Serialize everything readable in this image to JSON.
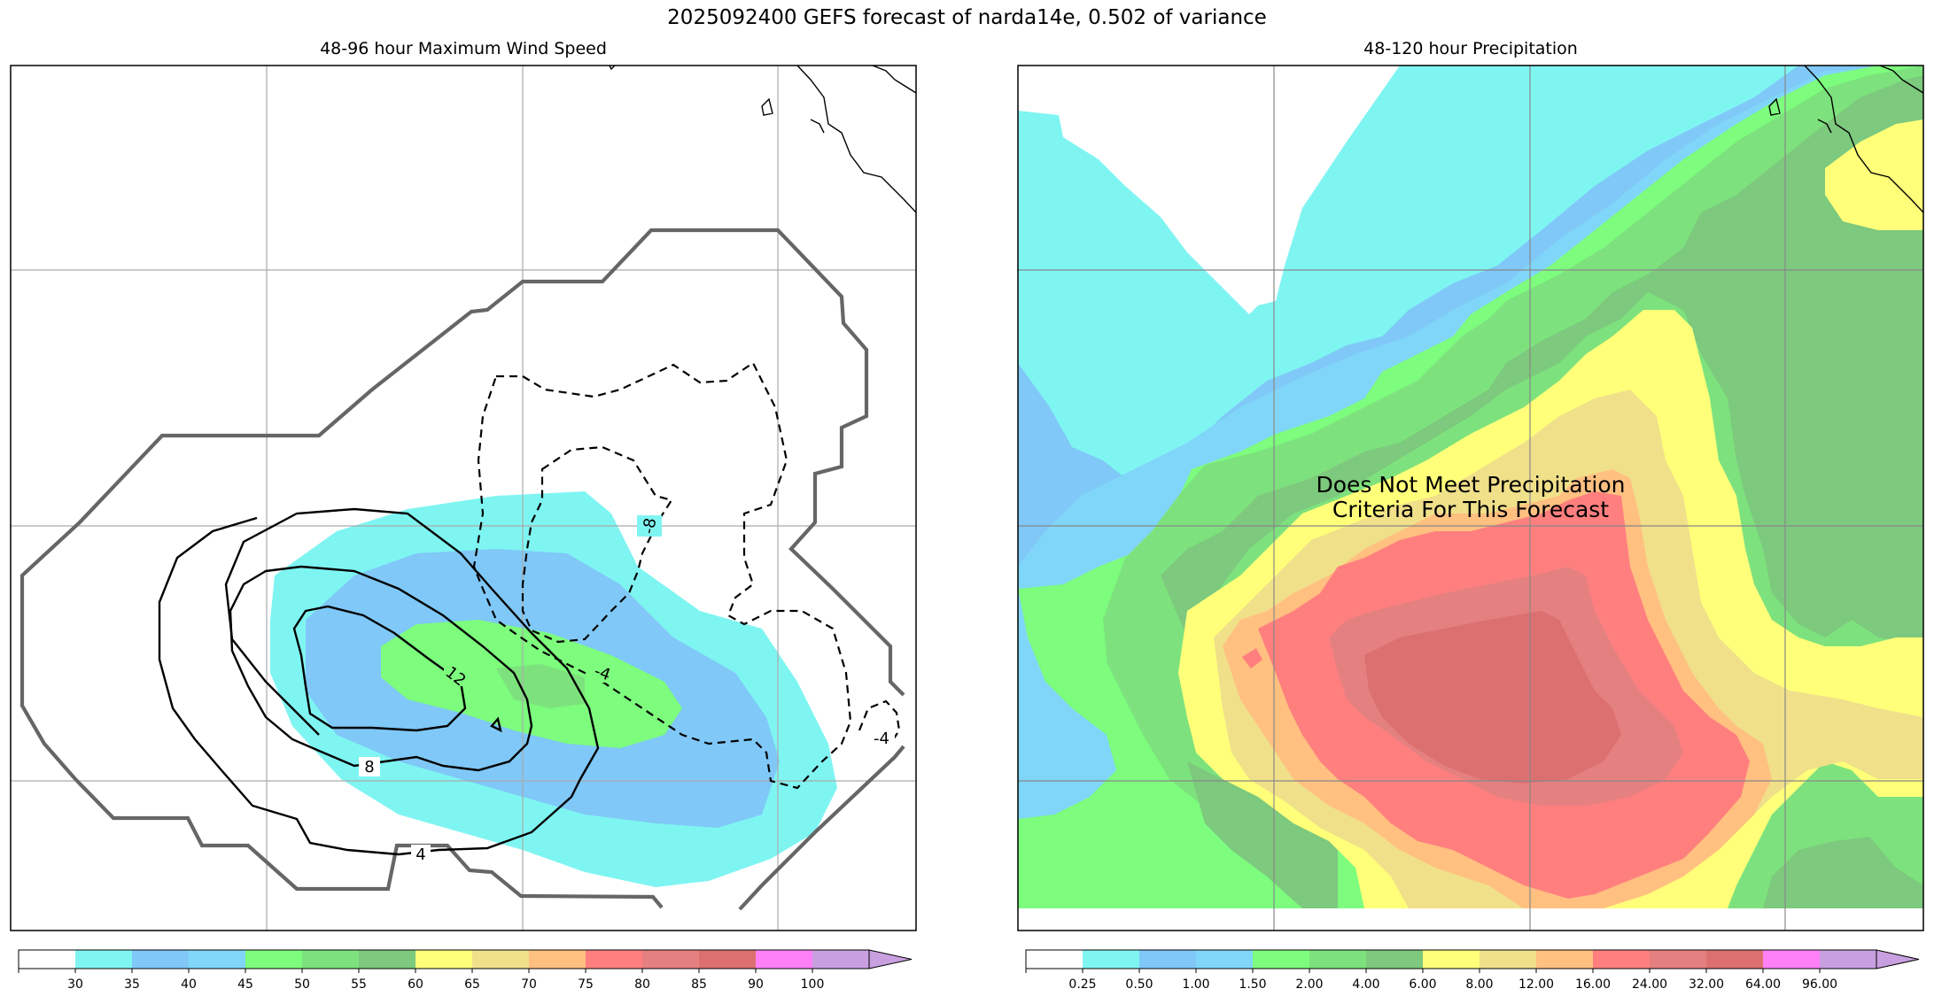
{
  "title": "2025092400 GEFS forecast of narda14e, 0.502 of variance",
  "chart_data": [
    {
      "type": "heatmap",
      "title": "48-96 hour Maximum Wind Speed",
      "colorbar": {
        "ticks": [
          "30",
          "35",
          "40",
          "45",
          "50",
          "55",
          "60",
          "65",
          "70",
          "75",
          "80",
          "85",
          "90",
          "100"
        ],
        "colors": [
          "#ffffff",
          "#7ff5f2",
          "#7fc8f7",
          "#80d6f8",
          "#7dfc7d",
          "#7de27d",
          "#7dc97d",
          "#ffff7a",
          "#f0e08a",
          "#ffc080",
          "#ff7f7f",
          "#e58080",
          "#dc7070",
          "#ff80f7",
          "#c8a0e0"
        ]
      },
      "filled_regions": [
        {
          "label": "30-35",
          "color": "#7ff5f2"
        },
        {
          "label": "35-40",
          "color": "#7fc8f7"
        },
        {
          "label": "45-50",
          "color": "#7dfc7d"
        },
        {
          "label": "50-55",
          "color": "#7de27d"
        }
      ],
      "contours": [
        {
          "value": "12",
          "style": "solid",
          "color": "#000000"
        },
        {
          "value": "8",
          "style": "solid",
          "color": "#000000"
        },
        {
          "value": "4",
          "style": "solid",
          "color": "#000000"
        },
        {
          "value": "-4",
          "style": "dashed",
          "color": "#000000"
        },
        {
          "value": "-8",
          "style": "dashed",
          "color": "#000000"
        }
      ],
      "contour_labels": [
        "12",
        "8",
        "4",
        "-4",
        "-8",
        "-4"
      ],
      "grid": true
    },
    {
      "type": "heatmap",
      "title": "48-120 hour Precipitation",
      "annotation": "Does Not Meet Precipitation\nCriteria For This Forecast",
      "annotation_lines": [
        "Does Not Meet Precipitation",
        "Criteria For This Forecast"
      ],
      "colorbar": {
        "ticks": [
          "0.25",
          "0.50",
          "1.00",
          "1.50",
          "2.00",
          "4.00",
          "6.00",
          "8.00",
          "12.00",
          "16.00",
          "24.00",
          "32.00",
          "64.00",
          "96.00"
        ],
        "colors": [
          "#ffffff",
          "#7ff5f2",
          "#7fc8f7",
          "#80d6f8",
          "#7dfc7d",
          "#7de27d",
          "#7dc97d",
          "#ffff7a",
          "#f0e08a",
          "#ffc080",
          "#ff7f7f",
          "#e58080",
          "#dc7070",
          "#ff80f7",
          "#c8a0e0"
        ]
      },
      "grid": true
    }
  ]
}
